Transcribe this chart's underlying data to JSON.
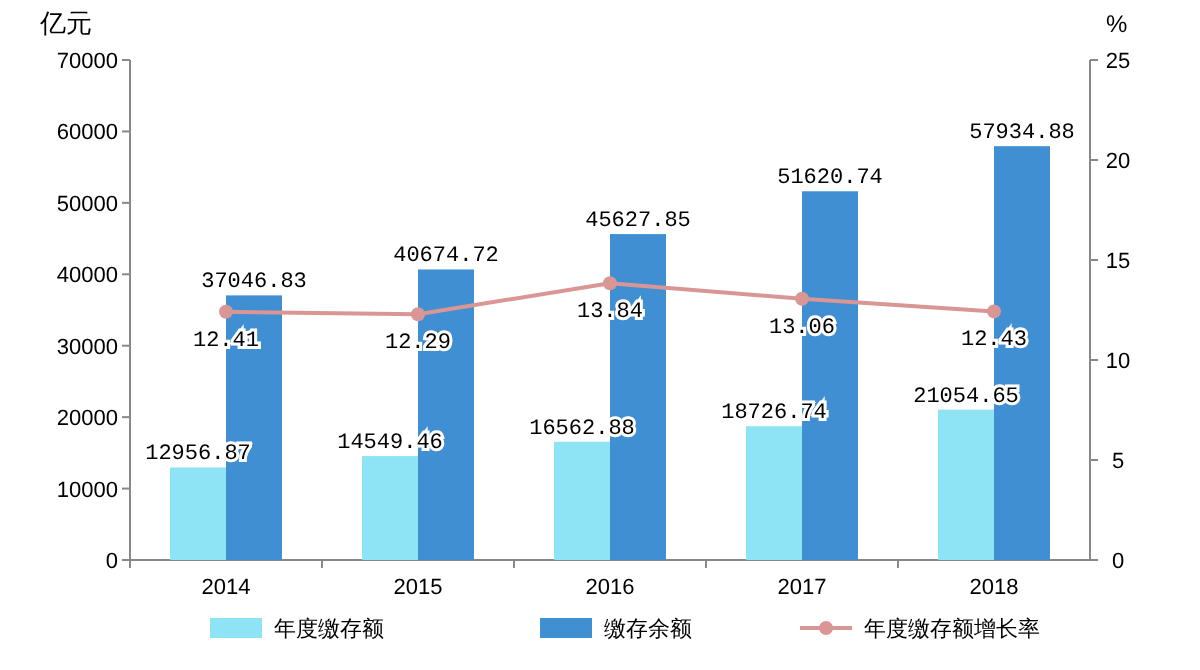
{
  "chart_data": {
    "type": "bar",
    "ylabel": "亿元",
    "y2label": "%",
    "categories": [
      "2014",
      "2015",
      "2016",
      "2017",
      "2018"
    ],
    "series": [
      {
        "name": "年度缴存额",
        "color": "#8ee3f5",
        "values": [
          12956.87,
          14549.46,
          16562.88,
          18726.74,
          21054.65
        ]
      },
      {
        "name": "缴存余额",
        "color": "#3f8fd2",
        "values": [
          37046.83,
          40674.72,
          45627.85,
          51620.74,
          57934.88
        ]
      },
      {
        "name": "年度缴存额增长率",
        "type": "line",
        "axis": "y2",
        "color": "#d99694",
        "marker": "circle",
        "values": [
          12.41,
          12.29,
          13.84,
          13.06,
          12.43
        ]
      }
    ],
    "ylim": [
      0,
      70000
    ],
    "yticks": [
      0,
      10000,
      20000,
      30000,
      40000,
      50000,
      60000,
      70000
    ],
    "y2lim": [
      0,
      25
    ],
    "y2ticks": [
      0,
      5,
      10,
      15,
      20,
      25
    ],
    "data_labels": true,
    "legend": "bottom"
  }
}
